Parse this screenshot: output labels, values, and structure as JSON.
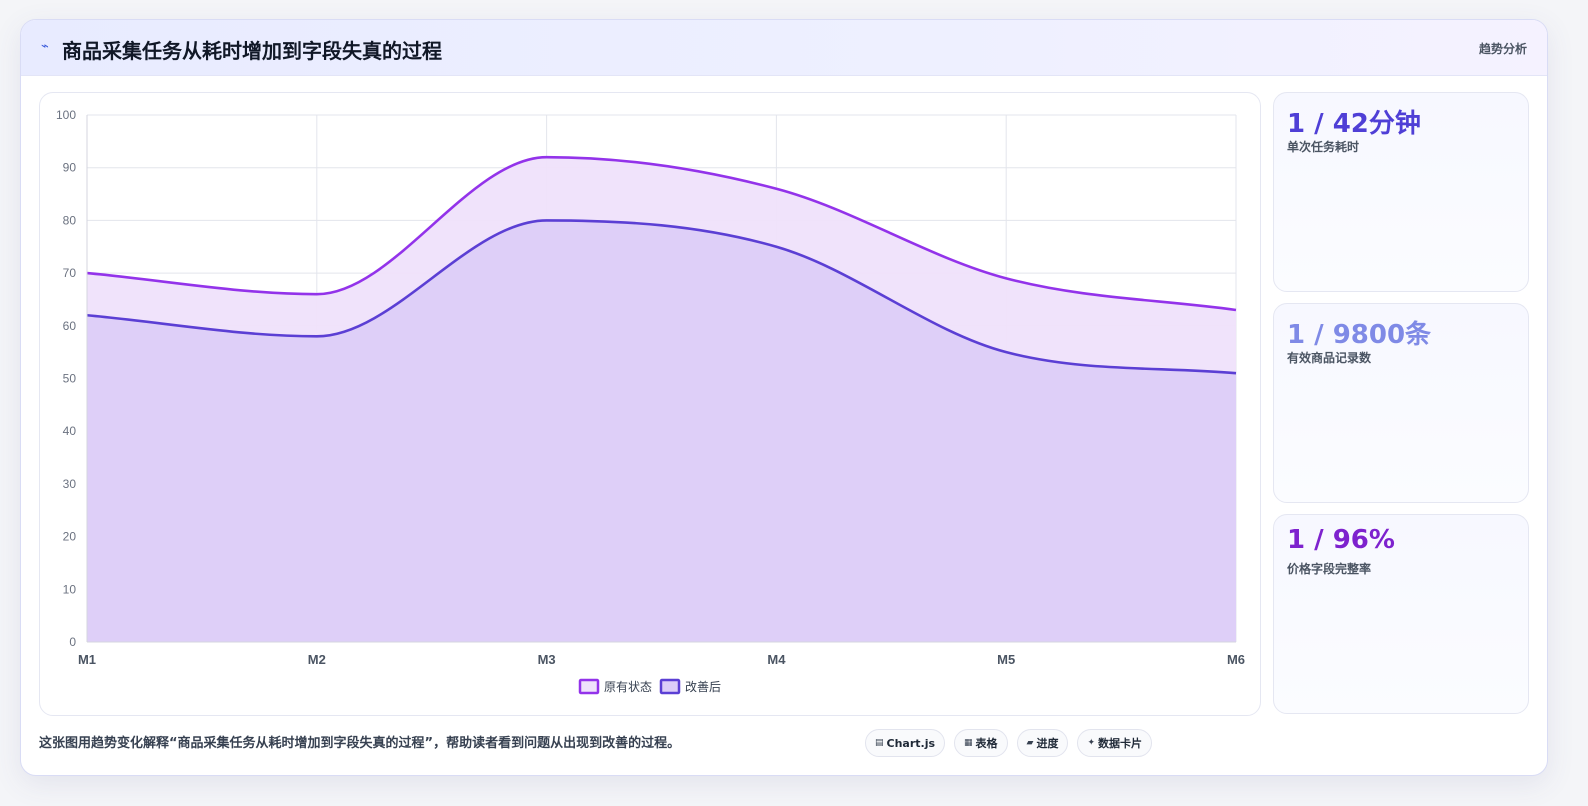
{
  "header": {
    "icon": "trend-icon",
    "title": "商品采集任务从耗时增加到字段失真的过程",
    "tag": "趋势分析"
  },
  "chart_data": {
    "type": "area",
    "title": "",
    "xlabel": "",
    "ylabel": "",
    "categories": [
      "M1",
      "M2",
      "M3",
      "M4",
      "M5",
      "M6"
    ],
    "ylim": [
      0,
      100
    ],
    "yticks": [
      0,
      10,
      20,
      30,
      40,
      50,
      60,
      70,
      80,
      90,
      100
    ],
    "grid": true,
    "smooth": true,
    "legend_position": "bottom",
    "series": [
      {
        "name": "原有状态",
        "values": [
          70,
          66,
          92,
          86,
          69,
          63
        ],
        "color": "#9333ea",
        "fill": "#efe2fb"
      },
      {
        "name": "改善后",
        "values": [
          62,
          58,
          80,
          75,
          55,
          51
        ],
        "color": "#5b3fd4",
        "fill": "#dccdf8"
      }
    ]
  },
  "kpis": [
    {
      "value": "1 / 42分钟",
      "label": "单次任务耗时",
      "color": "#4f3fd6"
    },
    {
      "value": "1 / 9800条",
      "label": "有效商品记录数",
      "color": "#7f8ae6"
    },
    {
      "value": "1 / 96%",
      "label": "价格字段完整率",
      "color": "#7e22ce"
    }
  ],
  "footer": {
    "description": "这张图用趋势变化解释“商品采集任务从耗时增加到字段失真的过程”，帮助读者看到问题从出现到改善的过程。",
    "chips": [
      {
        "icon": "chart-icon",
        "glyph": "▤",
        "label": "Chart.js"
      },
      {
        "icon": "table-icon",
        "glyph": "▦",
        "label": "表格"
      },
      {
        "icon": "progress-icon",
        "glyph": "▰",
        "label": "进度"
      },
      {
        "icon": "sparkle-icon",
        "glyph": "✦",
        "label": "数据卡片"
      }
    ]
  }
}
